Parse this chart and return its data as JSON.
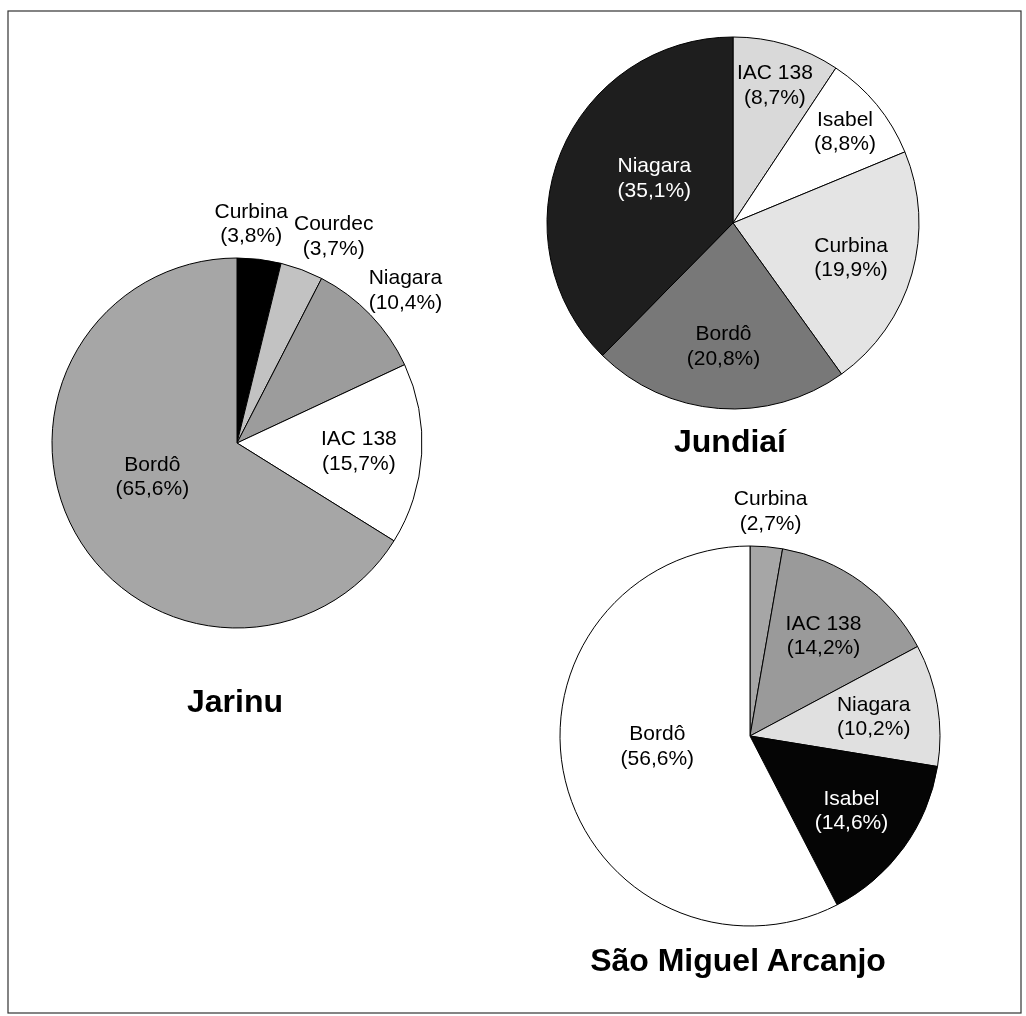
{
  "chart_data": [
    {
      "type": "pie",
      "title": "Jarinu",
      "categories": [
        "Curbina",
        "Courdec",
        "Niagara",
        "IAC 138",
        "Bordô"
      ],
      "values": [
        3.8,
        3.7,
        10.4,
        15.7,
        65.6
      ],
      "value_labels": [
        "(3,8%)",
        "(3,7%)",
        "(10,4%)",
        "(15,7%)",
        "(65,6%)"
      ],
      "colors": [
        "#000000",
        "#c2c2c2",
        "#9c9c9c",
        "#ffffff",
        "#a6a6a6"
      ]
    },
    {
      "type": "pie",
      "title": "Jundiaí",
      "categories": [
        "IAC 138",
        "Isabel",
        "Curbina",
        "Bordô",
        "Niagara"
      ],
      "values": [
        8.7,
        8.8,
        19.9,
        20.8,
        35.1
      ],
      "value_labels": [
        "(8,7%)",
        "(8,8%)",
        "(19,9%)",
        "(20,8%)",
        "(35,1%)"
      ],
      "colors": [
        "#d9d9d9",
        "#ffffff",
        "#e4e4e4",
        "#787878",
        "#1e1e1e"
      ]
    },
    {
      "type": "pie",
      "title": "São Miguel Arcanjo",
      "categories": [
        "Curbina",
        "IAC 138",
        "Niagara",
        "Isabel",
        "Bordô"
      ],
      "values": [
        2.7,
        14.2,
        10.2,
        14.6,
        56.6
      ],
      "value_labels": [
        "(2,7%)",
        "(14,2%)",
        "(10,2%)",
        "(14,6%)",
        "(56,6%)"
      ],
      "colors": [
        "#a6a6a6",
        "#9a9a9a",
        "#e0e0e0",
        "#050505",
        "#ffffff"
      ]
    }
  ]
}
